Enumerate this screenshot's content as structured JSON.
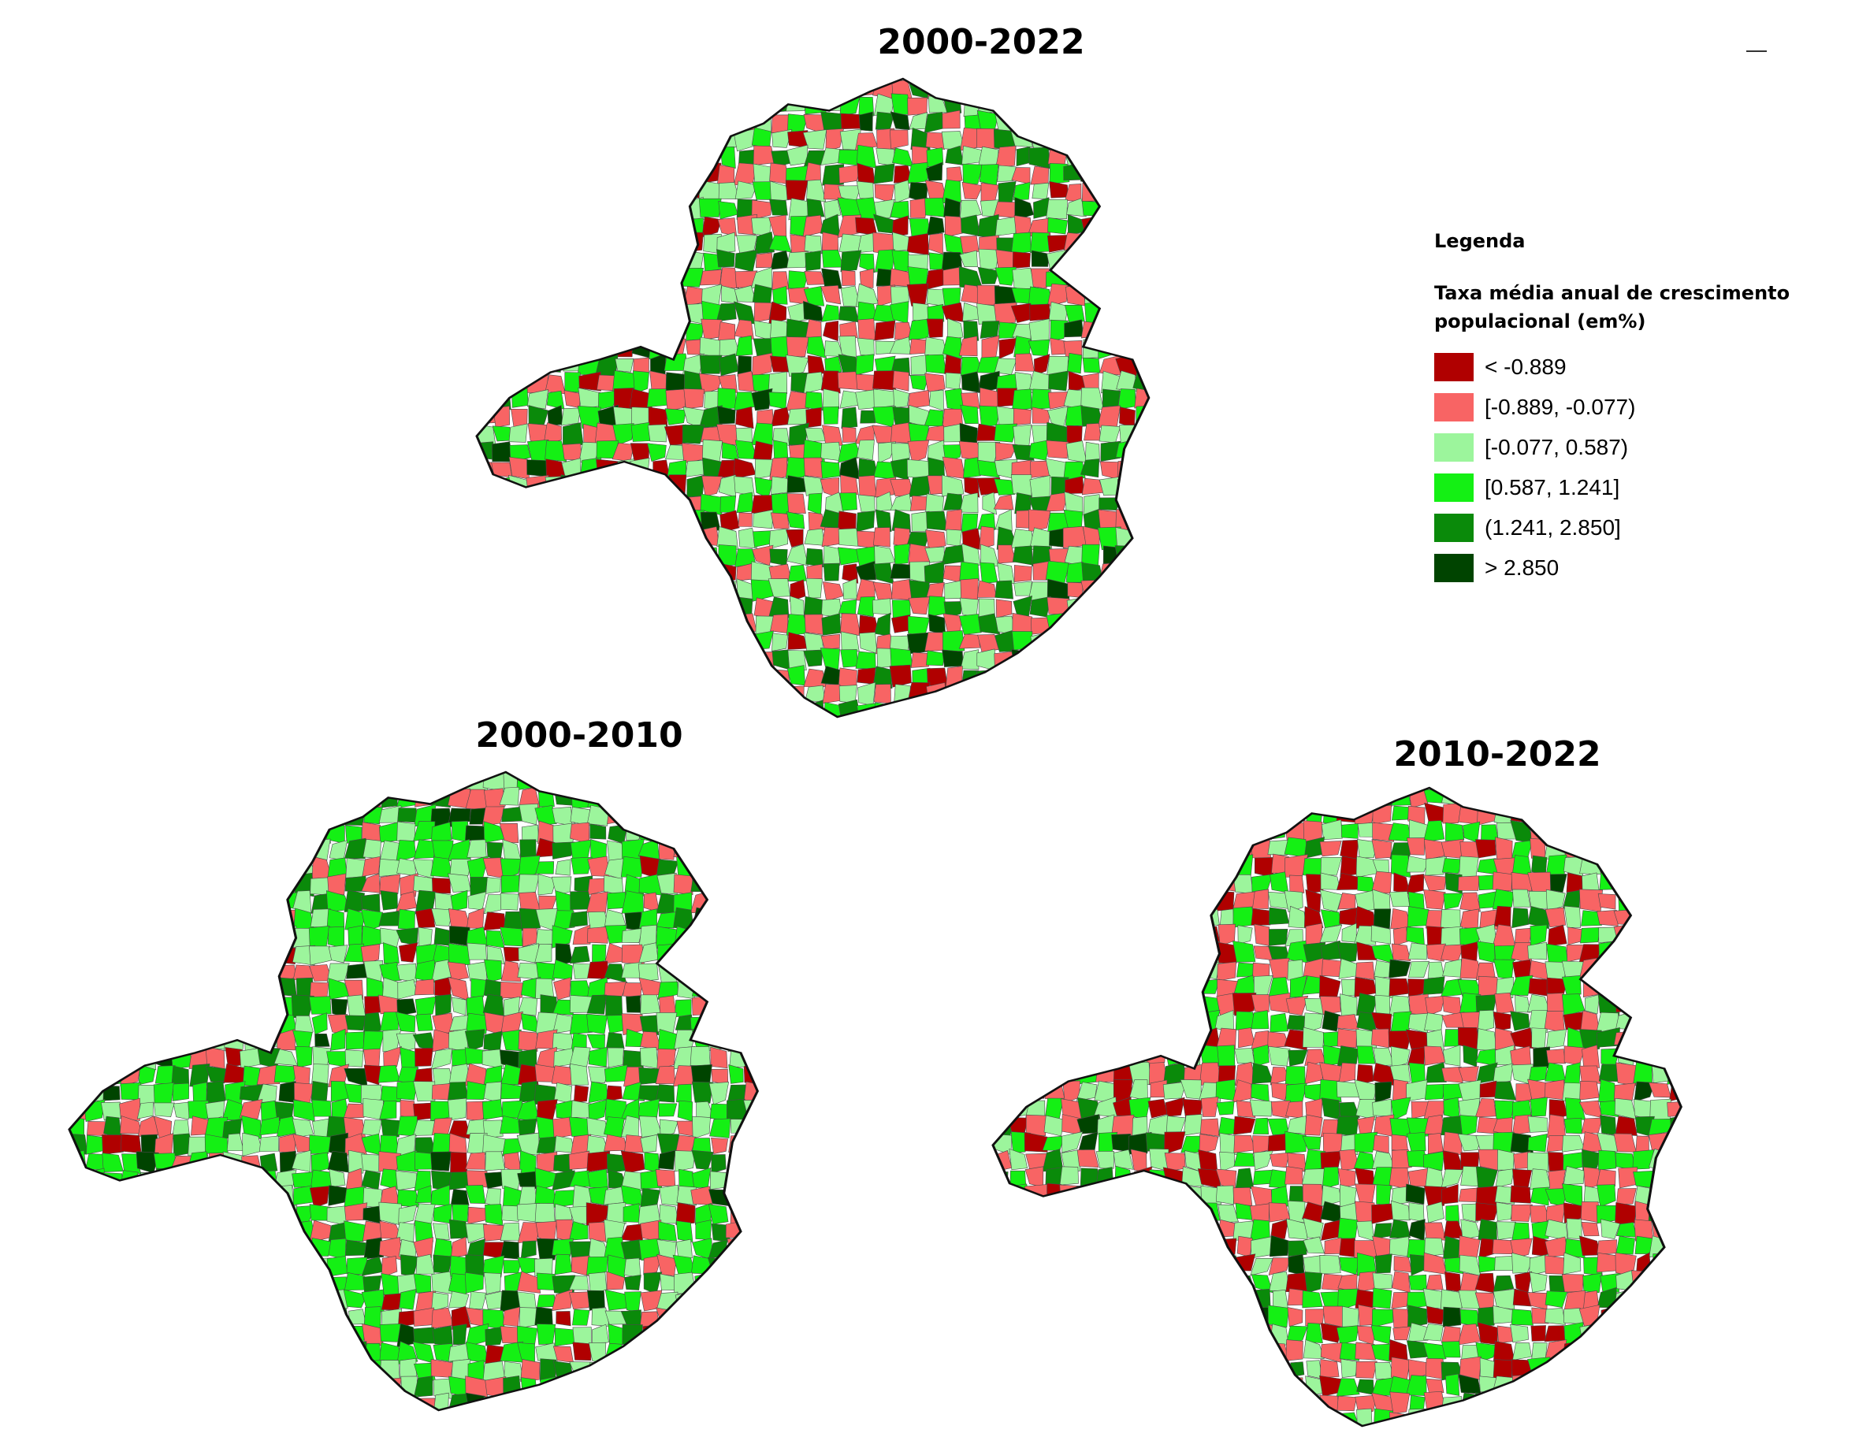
{
  "maps": {
    "top": {
      "title": "2000-2022"
    },
    "bottom_left": {
      "title": "2000-2010"
    },
    "bottom_right": {
      "title": "2010-2022"
    }
  },
  "legend": {
    "heading": "Legenda",
    "subtitle": "Taxa média anual de crescimento populacional (em%)",
    "classes": [
      {
        "label": "< -0.889",
        "color": "#b00000"
      },
      {
        "label": "[-0.889, -0.077)",
        "color": "#f86464"
      },
      {
        "label": "[-0.077, 0.587)",
        "color": "#9cf59c"
      },
      {
        "label": "[0.587, 1.241]",
        "color": "#14f014"
      },
      {
        "label": "(1.241, 2.850]",
        "color": "#0a8a0a"
      },
      {
        "label": "> 2.850",
        "color": "#004400"
      }
    ]
  }
}
